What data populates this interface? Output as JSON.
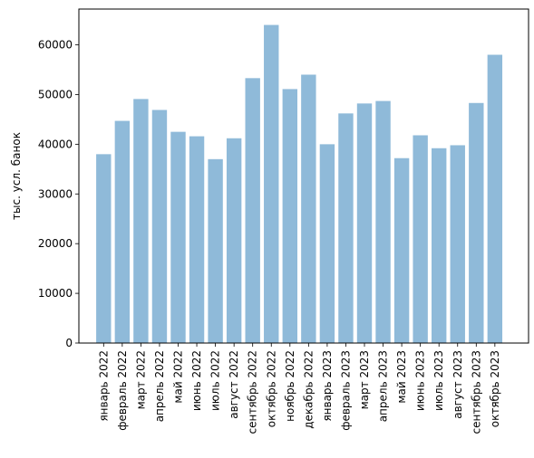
{
  "chart_data": {
    "type": "bar",
    "title": "",
    "xlabel": "",
    "ylabel": "тыс. усл. банок",
    "categories": [
      "январь 2022",
      "февраль 2022",
      "март 2022",
      "апрель 2022",
      "май 2022",
      "июнь 2022",
      "июль 2022",
      "август 2022",
      "сентябрь 2022",
      "октябрь 2022",
      "ноябрь 2022",
      "декабрь 2022",
      "январь 2023",
      "февраль 2023",
      "март 2023",
      "апрель 2023",
      "май 2023",
      "июнь 2023",
      "июль 2023",
      "август 2023",
      "сентябрь 2023",
      "октябрь 2023"
    ],
    "values": [
      38000,
      44700,
      49100,
      46900,
      42500,
      41600,
      37000,
      41200,
      53300,
      64000,
      51100,
      54000,
      40000,
      46200,
      48200,
      48700,
      37200,
      41800,
      39200,
      39800,
      48300,
      58000
    ],
    "ylim": [
      0,
      67200
    ],
    "yticks": [
      0,
      10000,
      20000,
      30000,
      40000,
      50000,
      60000
    ],
    "ytick_labels": [
      "0",
      "10000",
      "20000",
      "30000",
      "40000",
      "50000",
      "60000"
    ],
    "grid": false,
    "bar_color": "#8fbad9"
  }
}
